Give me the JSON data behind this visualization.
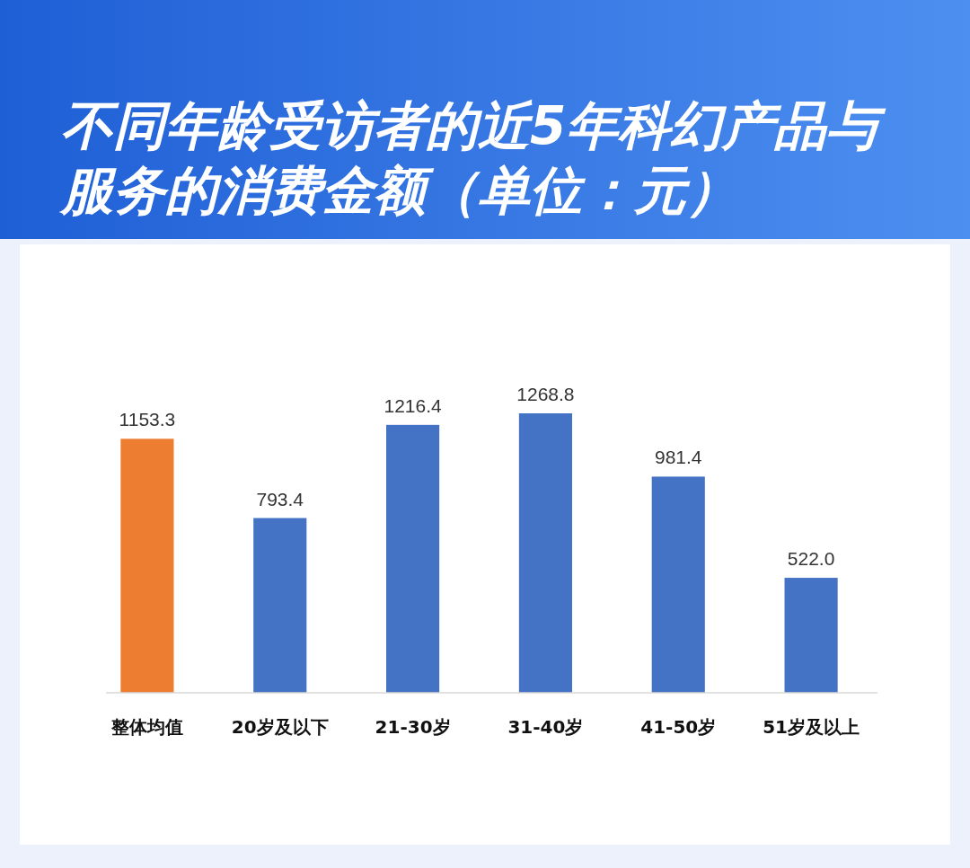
{
  "chart_data": {
    "type": "bar",
    "title": "不同年龄受访者的近5年科幻产品与服务的消费金额（单位：元）",
    "categories": [
      "整体均值",
      "20岁及以下",
      "21-30岁",
      "31-40岁",
      "41-50岁",
      "51岁及以上"
    ],
    "values": [
      1153.3,
      793.4,
      1216.4,
      1268.8,
      981.4,
      522.0
    ],
    "value_labels": [
      "1153.3",
      "793.4",
      "1216.4",
      "1268.8",
      "981.4",
      "522.0"
    ],
    "colors": [
      "#ed7d31",
      "#4472c4",
      "#4472c4",
      "#4472c4",
      "#4472c4",
      "#4472c4"
    ]
  }
}
